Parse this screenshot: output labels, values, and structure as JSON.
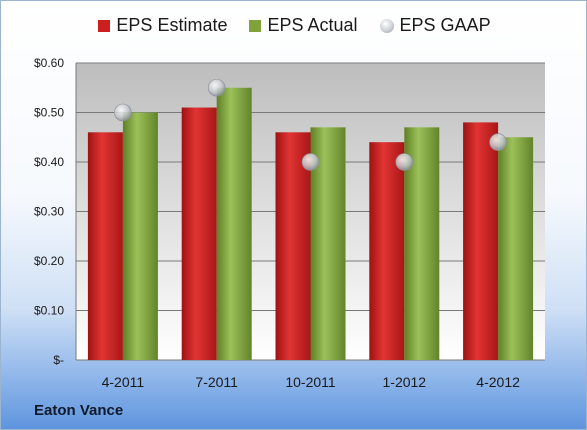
{
  "company": "Eaton Vance",
  "chart_data": {
    "type": "bar",
    "categories": [
      "4-2011",
      "7-2011",
      "10-2011",
      "1-2012",
      "4-2012"
    ],
    "series": [
      {
        "name": "EPS Estimate",
        "values": [
          0.46,
          0.51,
          0.46,
          0.44,
          0.48
        ],
        "color": "#cc1f1f"
      },
      {
        "name": "EPS Actual",
        "values": [
          0.5,
          0.55,
          0.47,
          0.47,
          0.45
        ],
        "color": "#7fa33a"
      },
      {
        "name": "EPS GAAP",
        "type": "scatter",
        "values": [
          0.5,
          0.55,
          0.4,
          0.4,
          0.44
        ],
        "color": "#c8ccd2"
      }
    ],
    "ylim": [
      0,
      0.6
    ],
    "yticks": [
      "$-",
      "$0.10",
      "$0.20",
      "$0.30",
      "$0.40",
      "$0.50",
      "$0.60"
    ],
    "grid": true,
    "legend": "top"
  }
}
